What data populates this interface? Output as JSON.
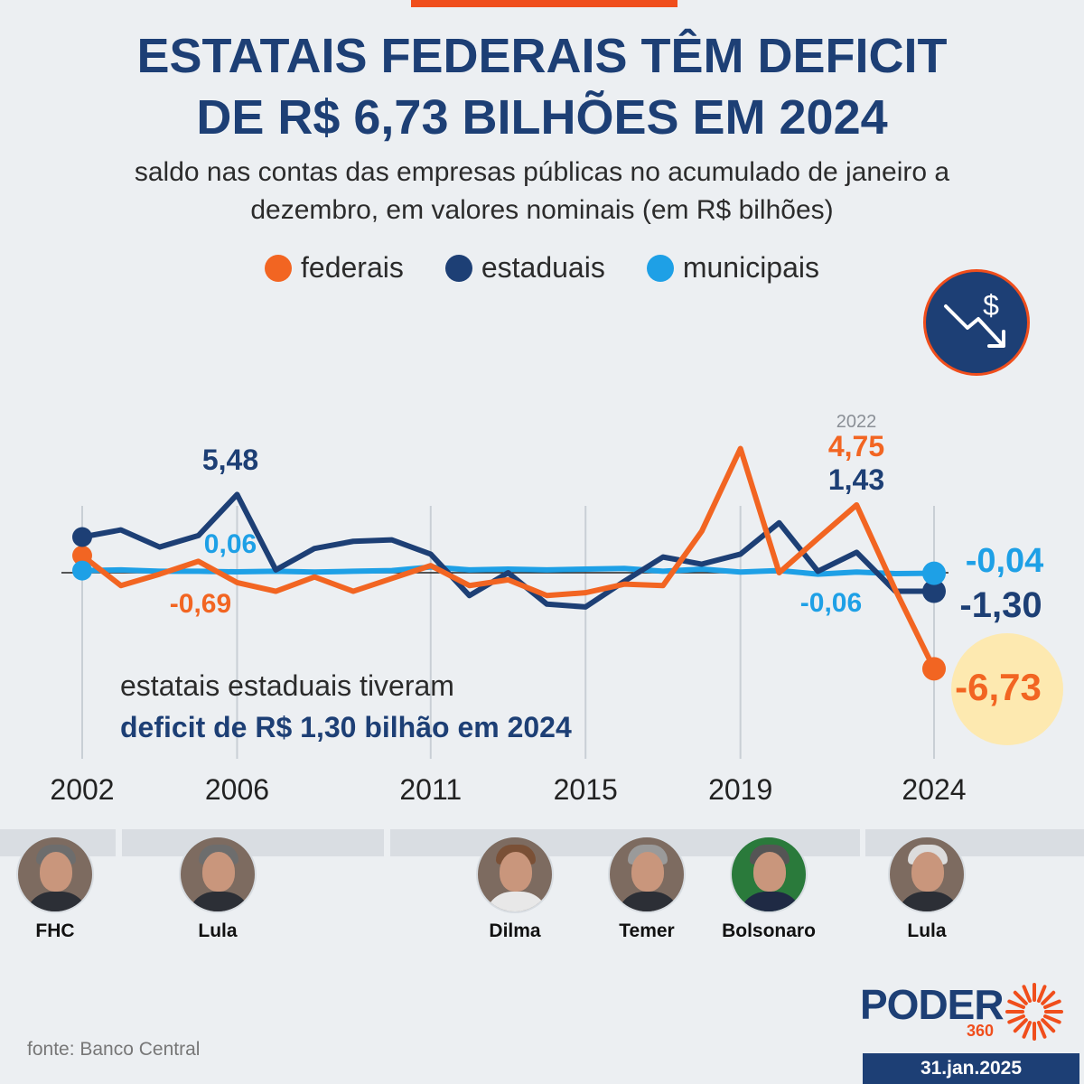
{
  "header": {
    "title_line1": "ESTATAIS FEDERAIS TÊM DEFICIT",
    "title_line2": "DE R$ 6,73 BILHÕES EM 2024",
    "subtitle_line1": "saldo nas contas das empresas públicas no acumulado de janeiro a",
    "subtitle_line2": "dezembro, em valores nominais (em R$ bilhões)"
  },
  "legend": [
    {
      "label": "federais",
      "color": "#f26522"
    },
    {
      "label": "estaduais",
      "color": "#1d3f75"
    },
    {
      "label": "municipais",
      "color": "#1ea0e6"
    }
  ],
  "icon": "dollar-down-trend-icon",
  "chart_data": {
    "type": "line",
    "x": [
      2002,
      2003,
      2004,
      2005,
      2006,
      2007,
      2008,
      2009,
      2010,
      2011,
      2012,
      2013,
      2014,
      2015,
      2016,
      2017,
      2018,
      2019,
      2020,
      2021,
      2022,
      2023,
      2024
    ],
    "x_tick_labels": [
      "2002",
      "2006",
      "2011",
      "2015",
      "2019",
      "2024"
    ],
    "x_ticks": [
      2002,
      2006,
      2011,
      2015,
      2019,
      2024
    ],
    "ylim": [
      -9,
      9.5
    ],
    "series": [
      {
        "name": "federais",
        "color": "#f26522",
        "values": [
          1.2,
          -0.9,
          -0.1,
          0.8,
          -0.69,
          -1.3,
          -0.3,
          -1.3,
          -0.4,
          0.5,
          -0.9,
          -0.5,
          -1.6,
          -1.4,
          -0.8,
          -0.9,
          2.9,
          8.7,
          0.0,
          2.4,
          4.75,
          -1.2,
          -6.73
        ]
      },
      {
        "name": "estaduais",
        "color": "#1d3f75",
        "values": [
          2.5,
          3.0,
          1.8,
          2.6,
          5.48,
          0.2,
          1.7,
          2.2,
          2.3,
          1.3,
          -1.6,
          0.0,
          -2.2,
          -2.4,
          -0.6,
          1.1,
          0.6,
          1.3,
          3.5,
          0.1,
          1.43,
          -1.3,
          -1.3
        ]
      },
      {
        "name": "municipais",
        "color": "#1ea0e6",
        "values": [
          0.15,
          0.2,
          0.1,
          0.1,
          0.06,
          0.1,
          0.05,
          0.1,
          0.15,
          0.4,
          0.2,
          0.25,
          0.2,
          0.25,
          0.3,
          0.1,
          0.25,
          0.05,
          0.15,
          -0.1,
          0.05,
          -0.06,
          -0.04
        ]
      }
    ],
    "annotations": [
      {
        "text": "5,48",
        "series": "estaduais",
        "year": 2006
      },
      {
        "text": "0,06",
        "series": "municipais",
        "year": 2006
      },
      {
        "text": "-0,69",
        "series": "federais",
        "year": 2006
      },
      {
        "text": "2022",
        "year": 2022
      },
      {
        "text": "4,75",
        "series": "federais",
        "year": 2022
      },
      {
        "text": "1,43",
        "series": "estaduais",
        "year": 2022
      },
      {
        "text": "-0,06",
        "series": "municipais",
        "year": 2023
      },
      {
        "text": "-0,04",
        "series": "municipais",
        "year": 2024
      },
      {
        "text": "-1,30",
        "series": "estaduais",
        "year": 2024
      },
      {
        "text": "-6,73",
        "series": "federais",
        "year": 2024
      }
    ],
    "note_line1": "estatais estaduais tiveram",
    "note_line2": "deficit de R$ 1,30 bilhão em 2024"
  },
  "presidents": [
    {
      "name": "FHC"
    },
    {
      "name": "Lula"
    },
    {
      "name": "Dilma"
    },
    {
      "name": "Temer"
    },
    {
      "name": "Bolsonaro"
    },
    {
      "name": "Lula"
    }
  ],
  "footer": {
    "source": "fonte: Banco Central",
    "logo_text": "PODER",
    "logo_sub": "360",
    "date": "31.jan.2025"
  }
}
